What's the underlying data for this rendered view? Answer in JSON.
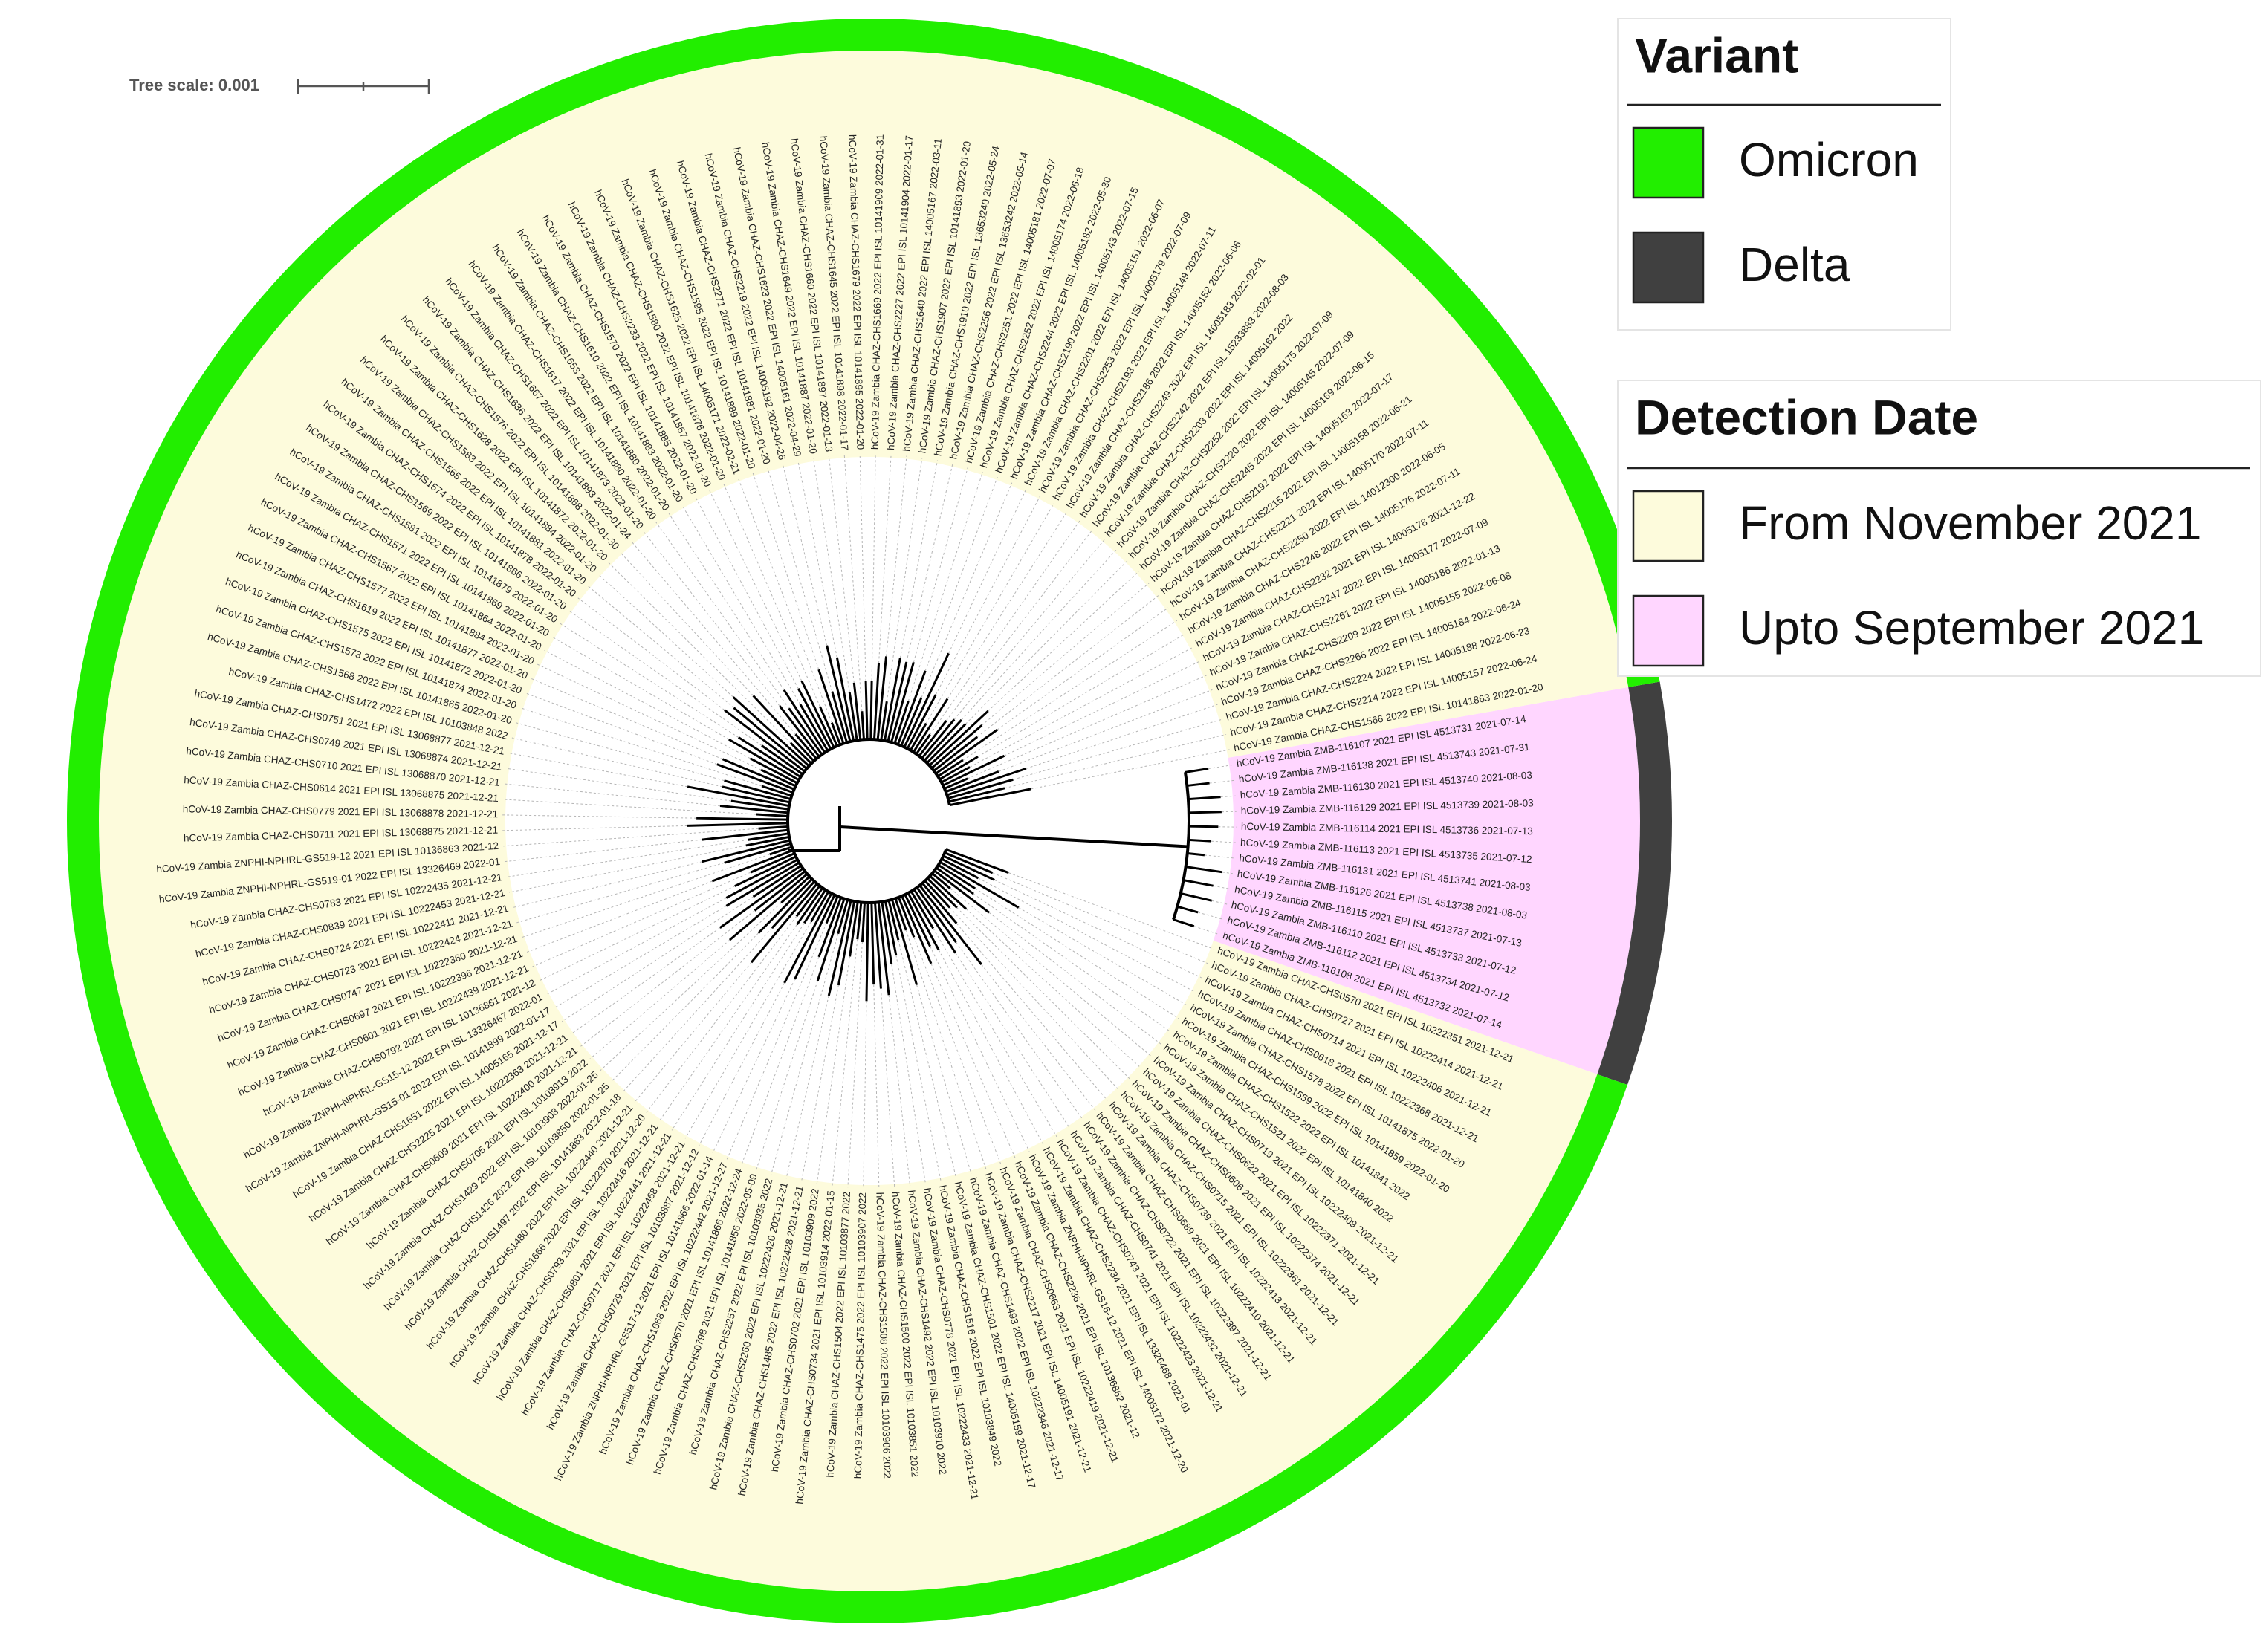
{
  "tree_scale": {
    "label": "Tree scale: 0.001"
  },
  "legends": [
    {
      "title": "Variant",
      "items": [
        {
          "label": "Omicron",
          "color": "#22ee00"
        },
        {
          "label": "Delta",
          "color": "#404040"
        }
      ]
    },
    {
      "title": "Detection Date",
      "items": [
        {
          "label": "From November 2021",
          "color": "#fdfbdc"
        },
        {
          "label": "Upto September 2021",
          "color": "#ffd6ff"
        }
      ]
    }
  ],
  "tree": {
    "clades": [
      {
        "variant": "Delta",
        "date": "Upto September 2021",
        "leaves": [
          "hCoV-19 Zambia ZMB-116107 2021 EPI ISL 4513731 2021-07-14",
          "hCoV-19 Zambia ZMB-116138 2021 EPI ISL 4513743 2021-07-31",
          "hCoV-19 Zambia ZMB-116130 2021 EPI ISL 4513740 2021-08-03",
          "hCoV-19 Zambia ZMB-116129 2021 EPI ISL 4513739 2021-08-03",
          "hCoV-19 Zambia ZMB-116114 2021 EPI ISL 4513736 2021-07-13",
          "hCoV-19 Zambia ZMB-116113 2021 EPI ISL 4513735 2021-07-12",
          "hCoV-19 Zambia ZMB-116131 2021 EPI ISL 4513741 2021-08-03",
          "hCoV-19 Zambia ZMB-116126 2021 EPI ISL 4513738 2021-08-03",
          "hCoV-19 Zambia ZMB-116115 2021 EPI ISL 4513737 2021-07-13",
          "hCoV-19 Zambia ZMB-116110 2021 EPI ISL 4513733 2021-07-12",
          "hCoV-19 Zambia ZMB-116112 2021 EPI ISL 4513734 2021-07-12",
          "hCoV-19 Zambia ZMB-116108 2021 EPI ISL 4513732 2021-07-14"
        ]
      },
      {
        "variant": "Omicron",
        "date": "From November 2021",
        "leaves": [
          "hCoV-19 Zambia CHAZ-CHS0570 2021 EPI ISL 10222351 2021-12-21",
          "hCoV-19 Zambia CHAZ-CHS0727 2021 EPI ISL 10222414 2021-12-21",
          "hCoV-19 Zambia CHAZ-CHS0714 2021 EPI ISL 10222406 2021-12-21",
          "hCoV-19 Zambia CHAZ-CHS0618 2021 EPI ISL 10222368 2021-12-21",
          "hCoV-19 Zambia CHAZ-CHS1578 2022 EPI ISL 10141875 2022-01-20",
          "hCoV-19 Zambia CHAZ-CHS1559 2022 EPI ISL 10141859 2022-01-20",
          "hCoV-19 Zambia CHAZ-CHS1522 2022 EPI ISL 10141841 2022",
          "hCoV-19 Zambia CHAZ-CHS1521 2022 EPI ISL 10141840 2022",
          "hCoV-19 Zambia CHAZ-CHS0719 2021 EPI ISL 10222409 2021-12-21",
          "hCoV-19 Zambia CHAZ-CHS0622 2021 EPI ISL 10222371 2021-12-21",
          "hCoV-19 Zambia CHAZ-CHS0606 2021 EPI ISL 10222374 2021-12-21",
          "hCoV-19 Zambia CHAZ-CHS0715 2021 EPI ISL 10222361 2021-12-21",
          "hCoV-19 Zambia CHAZ-CHS0739 2021 EPI ISL 10222413 2021-12-21",
          "hCoV-19 Zambia CHAZ-CHS0689 2021 EPI ISL 10222410 2021-12-21",
          "hCoV-19 Zambia CHAZ-CHS0722 2021 EPI ISL 10222397 2021-12-21",
          "hCoV-19 Zambia CHAZ-CHS0741 2021 EPI ISL 10222432 2021-12-21",
          "hCoV-19 Zambia CHAZ-CHS0743 2021 EPI ISL 10222423 2021-12-21",
          "hCoV-19 Zambia CHAZ-CHS2234 2021 EPI ISL 13326468 2022-01",
          "hCoV-19 Zambia ZNPHI-NPHRL-GS16-12 2021 EPI ISL 14005172 2021-12-20",
          "hCoV-19 Zambia CHAZ-CHS2236 2021 EPI ISL 10136862 2021-12",
          "hCoV-19 Zambia CHAZ-CHS0663 2021 EPI ISL 10222419 2021-12-21",
          "hCoV-19 Zambia CHAZ-CHS2217 2021 EPI ISL 14005191 2021-12-21",
          "hCoV-19 Zambia CHAZ-CHS1493 2022 EPI ISL 10222346 2021-12-17",
          "hCoV-19 Zambia CHAZ-CHS1501 2022 EPI ISL 14005159 2021-12-17",
          "hCoV-19 Zambia CHAZ-CHS1516 2022 EPI ISL 10103849 2022",
          "hCoV-19 Zambia CHAZ-CHS0778 2021 EPI ISL 10222433 2021-12-21",
          "hCoV-19 Zambia CHAZ-CHS1492 2022 EPI ISL 10103910 2022",
          "hCoV-19 Zambia CHAZ-CHS1500 2022 EPI ISL 10103851 2022",
          "hCoV-19 Zambia CHAZ-CHS1508 2022 EPI ISL 10103906 2022",
          "hCoV-19 Zambia CHAZ-CHS1475 2022 EPI ISL 10103907 2022",
          "hCoV-19 Zambia CHAZ-CHS1504 2022 EPI ISL 10103877 2022",
          "hCoV-19 Zambia CHAZ-CHS0734 2021 EPI ISL 10103914 2022-01-15",
          "hCoV-19 Zambia CHAZ-CHS0702 2021 EPI ISL 10103909 2022",
          "hCoV-19 Zambia CHAZ-CHS1485 2022 EPI ISL 10222428 2021-12-21",
          "hCoV-19 Zambia CHAZ-CHS2260 2022 EPI ISL 10222420 2021-12-21",
          "hCoV-19 Zambia CHAZ-CHS2257 2022 EPI ISL 10103935 2022",
          "hCoV-19 Zambia CHAZ-CHS0798 2021 EPI ISL 10141856 2022-05-09",
          "hCoV-19 Zambia CHAZ-CHS0670 2021 EPI ISL 10141866 2022-12-24",
          "hCoV-19 Zambia CHAZ-CHS1668 2022 EPI ISL 10222442 2021-12-27",
          "hCoV-19 Zambia ZNPHI-NPHRL-GS517-12 2021 EPI ISL 10141866 2022-01-14",
          "hCoV-19 Zambia CHAZ-CHS0729 2021 EPI ISL 10103887 2021-12-12",
          "hCoV-19 Zambia CHAZ-CHS0717 2021 EPI ISL 10222468 2021-12-21",
          "hCoV-19 Zambia CHAZ-CHS0801 2021 EPI ISL 10222441 2021-12-21",
          "hCoV-19 Zambia CHAZ-CHS0793 2021 EPI ISL 10222416 2021-12-21",
          "hCoV-19 Zambia CHAZ-CHS1666 2022 EPI ISL 10222370 2021-12-20",
          "hCoV-19 Zambia CHAZ-CHS1480 2022 EPI ISL 10222440 2021-12-21",
          "hCoV-19 Zambia CHAZ-CHS1497 2022 EPI ISL 10141863 2022-01-18",
          "hCoV-19 Zambia CHAZ-CHS1426 2022 EPI ISL 10103850 2022-01-25",
          "hCoV-19 Zambia CHAZ-CHS1429 2022 EPI ISL 10103908 2022-01-25",
          "hCoV-19 Zambia CHAZ-CHS0705 2021 EPI ISL 10103913 2022",
          "hCoV-19 Zambia CHAZ-CHS0609 2021 EPI ISL 10222400 2021-12-21",
          "hCoV-19 Zambia CHAZ-CHS2225 2021 EPI ISL 10222363 2021-12-21",
          "hCoV-19 Zambia CHAZ-CHS1651 2022 EPI ISL 14005165 2021-12-17",
          "hCoV-19 Zambia ZNPHI-NPHRL-GS15-01 2022 EPI ISL 10141899 2022-01-17",
          "hCoV-19 Zambia ZNPHI-NPHRL-GS15-12 2022 EPI ISL 13326467 2022-01",
          "hCoV-19 Zambia CHAZ-CHS0792 2021 EPI ISL 10136861 2021-12",
          "hCoV-19 Zambia CHAZ-CHS0601 2021 EPI ISL 10222439 2021-12-21",
          "hCoV-19 Zambia CHAZ-CHS0697 2021 EPI ISL 10222396 2021-12-21",
          "hCoV-19 Zambia CHAZ-CHS0747 2021 EPI ISL 10222360 2021-12-21",
          "hCoV-19 Zambia CHAZ-CHS0723 2021 EPI ISL 10222424 2021-12-21",
          "hCoV-19 Zambia CHAZ-CHS0724 2021 EPI ISL 10222411 2021-12-21",
          "hCoV-19 Zambia CHAZ-CHS0839 2021 EPI ISL 10222453 2021-12-21",
          "hCoV-19 Zambia CHAZ-CHS0783 2021 EPI ISL 10222435 2021-12-21",
          "hCoV-19 Zambia ZNPHI-NPHRL-GS519-01 2022 EPI ISL 13326469 2022-01",
          "hCoV-19 Zambia ZNPHI-NPHRL-GS519-12 2021 EPI ISL 10136863 2021-12",
          "hCoV-19 Zambia CHAZ-CHS0711 2021 EPI ISL 13068875 2021-12-21",
          "hCoV-19 Zambia CHAZ-CHS0779 2021 EPI ISL 13068878 2021-12-21",
          "hCoV-19 Zambia CHAZ-CHS0614 2021 EPI ISL 13068875 2021-12-21",
          "hCoV-19 Zambia CHAZ-CHS0710 2021 EPI ISL 13068870 2021-12-21",
          "hCoV-19 Zambia CHAZ-CHS0749 2021 EPI ISL 13068874 2021-12-21",
          "hCoV-19 Zambia CHAZ-CHS0751 2021 EPI ISL 13068877 2021-12-21",
          "hCoV-19 Zambia CHAZ-CHS1472 2022 EPI ISL 10103848 2022",
          "hCoV-19 Zambia CHAZ-CHS1568 2022 EPI ISL 10141865 2022-01-20",
          "hCoV-19 Zambia CHAZ-CHS1573 2022 EPI ISL 10141874 2022-01-20",
          "hCoV-19 Zambia CHAZ-CHS1575 2022 EPI ISL 10141872 2022-01-20",
          "hCoV-19 Zambia CHAZ-CHS1619 2022 EPI ISL 10141877 2022-01-20",
          "hCoV-19 Zambia CHAZ-CHS1577 2022 EPI ISL 10141884 2022-01-20",
          "hCoV-19 Zambia CHAZ-CHS1567 2022 EPI ISL 10141864 2022-01-20",
          "hCoV-19 Zambia CHAZ-CHS1571 2022 EPI ISL 10141869 2022-01-20",
          "hCoV-19 Zambia CHAZ-CHS1581 2022 EPI ISL 10141879 2022-01-20",
          "hCoV-19 Zambia CHAZ-CHS1569 2022 EPI ISL 10141866 2022-01-20",
          "hCoV-19 Zambia CHAZ-CHS1574 2022 EPI ISL 10141878 2022-01-20",
          "hCoV-19 Zambia CHAZ-CHS1565 2022 EPI ISL 10141881 2022-01-20",
          "hCoV-19 Zambia CHAZ-CHS1583 2022 EPI ISL 10141884 2022-01-20",
          "hCoV-19 Zambia CHAZ-CHS1628 2022 EPI ISL 10141872 2022-01-20",
          "hCoV-19 Zambia CHAZ-CHS1576 2022 EPI ISL 10141868 2022-01-30",
          "hCoV-19 Zambia CHAZ-CHS1636 2022 EPI ISL 10141893 2022-01-24",
          "hCoV-19 Zambia CHAZ-CHS1667 2022 EPI ISL 10141873 2022-01-20",
          "hCoV-19 Zambia CHAZ-CHS1617 2022 EPI ISL 10141880 2022-01-20",
          "hCoV-19 Zambia CHAZ-CHS1653 2022 EPI ISL 10141880 2022-01-20",
          "hCoV-19 Zambia CHAZ-CHS1610 2022 EPI ISL 10141883 2022-01-20",
          "hCoV-19 Zambia CHAZ-CHS1570 2022 EPI ISL 10141885 2022-01-20",
          "hCoV-19 Zambia CHAZ-CHS2233 2022 EPI ISL 10141867 2022-01-20",
          "hCoV-19 Zambia CHAZ-CHS1580 2022 EPI ISL 10141876 2022-01-20",
          "hCoV-19 Zambia CHAZ-CHS1625 2022 EPI ISL 14005171 2022-02-21",
          "hCoV-19 Zambia CHAZ-CHS1595 2022 EPI ISL 10141889 2022-01-20",
          "hCoV-19 Zambia CHAZ-CHS2271 2022 EPI ISL 10141881 2022-01-20",
          "hCoV-19 Zambia CHAZ-CHS2219 2022 EPI ISL 14005192 2022-04-26",
          "hCoV-19 Zambia CHAZ-CHS1623 2022 EPI ISL 14005161 2022-04-29",
          "hCoV-19 Zambia CHAZ-CHS1649 2022 EPI ISL 10141887 2022-01-20",
          "hCoV-19 Zambia CHAZ-CHS1660 2022 EPI ISL 10141897 2022-01-13",
          "hCoV-19 Zambia CHAZ-CHS1645 2022 EPI ISL 10141898 2022-01-17",
          "hCoV-19 Zambia CHAZ-CHS1679 2022 EPI ISL 10141895 2022-01-20",
          "hCoV-19 Zambia CHAZ-CHS1669 2022 EPI ISL 10141909 2022-01-31",
          "hCoV-19 Zambia CHAZ-CHS2227 2022 EPI ISL 10141904 2022-01-17",
          "hCoV-19 Zambia CHAZ-CHS1640 2022 EPI ISL 14005167 2022-03-11",
          "hCoV-19 Zambia CHAZ-CHS1907 2022 EPI ISL 10141893 2022-01-20",
          "hCoV-19 Zambia CHAZ-CHS1910 2022 EPI ISL 13653240 2022-05-24",
          "hCoV-19 Zambia CHAZ-CHS2256 2022 EPI ISL 13653242 2022-05-14",
          "hCoV-19 Zambia CHAZ-CHS2251 2022 EPI ISL 14005181 2022-07-07",
          "hCoV-19 Zambia CHAZ-CHS2252 2022 EPI ISL 14005174 2022-06-18",
          "hCoV-19 Zambia CHAZ-CHS2244 2022 EPI ISL 14005182 2022-05-30",
          "hCoV-19 Zambia CHAZ-CHS2190 2022 EPI ISL 14005143 2022-07-15",
          "hCoV-19 Zambia CHAZ-CHS2201 2022 EPI ISL 14005151 2022-06-07",
          "hCoV-19 Zambia CHAZ-CHS2253 2022 EPI ISL 14005179 2022-07-09",
          "hCoV-19 Zambia CHAZ-CHS2193 2022 EPI ISL 14005149 2022-07-11",
          "hCoV-19 Zambia CHAZ-CHS2186 2022 EPI ISL 14005152 2022-06-06",
          "hCoV-19 Zambia CHAZ-CHS2249 2022 EPI ISL 14005183 2022-02-01",
          "hCoV-19 Zambia CHAZ-CHS2242 2022 EPI ISL 15233883 2022-08-03",
          "hCoV-19 Zambia CHAZ-CHS2203 2022 EPI ISL 14005162 2022",
          "hCoV-19 Zambia CHAZ-CHS2252 2022 EPI ISL 14005175 2022-07-09",
          "hCoV-19 Zambia CHAZ-CHS2220 2022 EPI ISL 14005145 2022-07-09",
          "hCoV-19 Zambia CHAZ-CHS2245 2022 EPI ISL 14005169 2022-06-15",
          "hCoV-19 Zambia CHAZ-CHS2192 2022 EPI ISL 14005163 2022-07-17",
          "hCoV-19 Zambia CHAZ-CHS2215 2022 EPI ISL 14005158 2022-06-21",
          "hCoV-19 Zambia CHAZ-CHS2221 2022 EPI ISL 14005170 2022-07-11",
          "hCoV-19 Zambia CHAZ-CHS2250 2022 EPI ISL 14012300 2022-06-05",
          "hCoV-19 Zambia CHAZ-CHS2248 2022 EPI ISL 14005176 2022-07-11",
          "hCoV-19 Zambia CHAZ-CHS2232 2021 EPI ISL 14005178 2021-12-22",
          "hCoV-19 Zambia CHAZ-CHS2247 2022 EPI ISL 14005177 2022-07-09",
          "hCoV-19 Zambia CHAZ-CHS2261 2022 EPI ISL 14005186 2022-01-13",
          "hCoV-19 Zambia CHAZ-CHS2209 2022 EPI ISL 14005155 2022-06-08",
          "hCoV-19 Zambia CHAZ-CHS2266 2022 EPI ISL 14005184 2022-06-24",
          "hCoV-19 Zambia CHAZ-CHS2224 2022 EPI ISL 14005188 2022-06-23",
          "hCoV-19 Zambia CHAZ-CHS2214 2022 EPI ISL 14005157 2022-06-24",
          "hCoV-19 Zambia CHAZ-CHS1566 2022 EPI ISL 10141863 2022-01-20"
        ]
      }
    ]
  }
}
